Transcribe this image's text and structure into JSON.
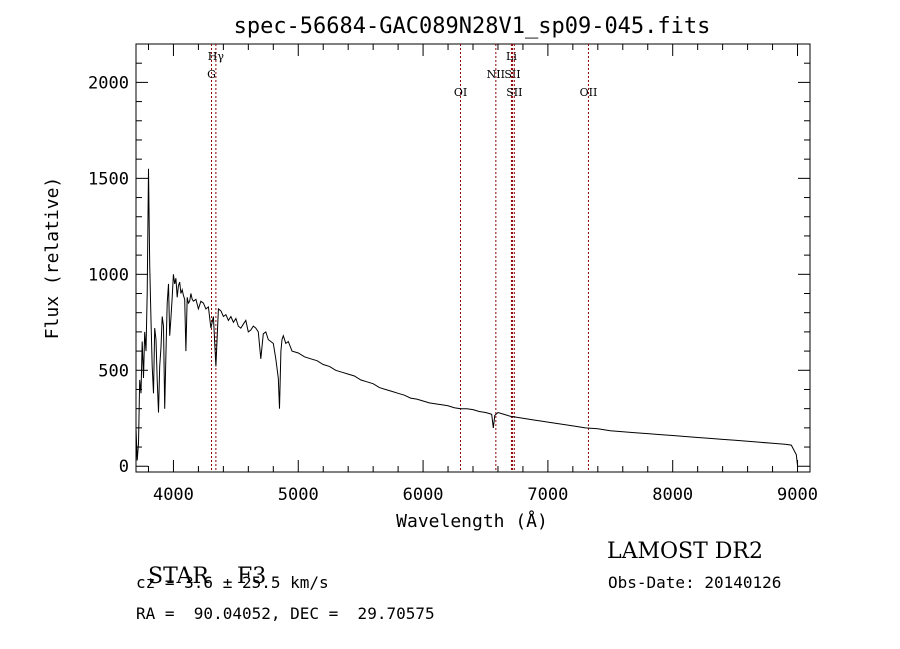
{
  "chart_data": {
    "type": "line",
    "title": "spec-56684-GAC089N28V1_sp09-045.fits",
    "xlabel": "Wavelength (Å)",
    "ylabel": "Flux (relative)",
    "xlim": [
      3700,
      9100
    ],
    "ylim": [
      -30,
      2200
    ],
    "x_ticks": [
      4000,
      5000,
      6000,
      7000,
      8000,
      9000
    ],
    "y_ticks": [
      0,
      500,
      1000,
      1500,
      2000
    ],
    "grid": false,
    "line_color": "#000000",
    "marker_color": "#8b0000",
    "spectral_lines": [
      {
        "name": "Hγ",
        "wavelength": 4340,
        "row": 1
      },
      {
        "name": "G",
        "wavelength": 4305,
        "row": 2
      },
      {
        "name": "OI",
        "wavelength": 6300,
        "row": 3
      },
      {
        "name": "NII",
        "wavelength": 6583,
        "row": 2
      },
      {
        "name": "Li",
        "wavelength": 6708,
        "row": 1
      },
      {
        "name": "SII",
        "wavelength": 6716,
        "row": 2
      },
      {
        "name": "SII",
        "wavelength": 6731,
        "row": 3
      },
      {
        "name": "OII",
        "wavelength": 7325,
        "row": 3
      }
    ],
    "series": [
      {
        "x": [
          3700,
          3710,
          3720,
          3730,
          3740,
          3750,
          3760,
          3770,
          3780,
          3790,
          3800,
          3810,
          3820,
          3830,
          3840,
          3850,
          3860,
          3870,
          3880,
          3890,
          3900,
          3910,
          3920,
          3930,
          3940,
          3950,
          3960,
          3970,
          3980,
          3990,
          4000,
          4010,
          4020,
          4030,
          4040,
          4050,
          4060,
          4070,
          4080,
          4090,
          4100,
          4110,
          4120,
          4130,
          4140,
          4150,
          4160,
          4180,
          4200,
          4220,
          4240,
          4260,
          4280,
          4300,
          4320,
          4340,
          4360,
          4380,
          4400,
          4420,
          4440,
          4460,
          4480,
          4500,
          4520,
          4540,
          4560,
          4580,
          4600,
          4620,
          4640,
          4660,
          4680,
          4700,
          4720,
          4740,
          4760,
          4780,
          4800,
          4820,
          4840,
          4850,
          4861,
          4870,
          4880,
          4900,
          4920,
          4950,
          5000,
          5050,
          5100,
          5150,
          5200,
          5250,
          5300,
          5350,
          5400,
          5450,
          5500,
          5550,
          5600,
          5650,
          5700,
          5750,
          5800,
          5850,
          5900,
          5950,
          6000,
          6050,
          6100,
          6150,
          6200,
          6250,
          6300,
          6350,
          6400,
          6450,
          6500,
          6530,
          6550,
          6563,
          6575,
          6600,
          6650,
          6700,
          6750,
          6800,
          6850,
          6900,
          6950,
          7000,
          7100,
          7200,
          7300,
          7400,
          7500,
          7600,
          7700,
          7800,
          7900,
          8000,
          8100,
          8200,
          8300,
          8400,
          8500,
          8600,
          8700,
          8800,
          8900,
          8950,
          8990,
          9000
        ],
        "y": [
          200,
          30,
          120,
          450,
          380,
          650,
          460,
          700,
          600,
          900,
          1550,
          1050,
          760,
          520,
          380,
          720,
          660,
          450,
          280,
          520,
          620,
          780,
          730,
          300,
          600,
          850,
          950,
          680,
          770,
          880,
          1000,
          950,
          980,
          880,
          940,
          960,
          900,
          920,
          890,
          870,
          600,
          880,
          850,
          860,
          900,
          870,
          860,
          870,
          820,
          860,
          850,
          820,
          830,
          720,
          780,
          520,
          820,
          810,
          780,
          790,
          760,
          780,
          750,
          770,
          730,
          720,
          740,
          760,
          700,
          710,
          730,
          720,
          700,
          560,
          690,
          700,
          660,
          650,
          640,
          560,
          460,
          300,
          600,
          660,
          680,
          640,
          650,
          600,
          590,
          570,
          560,
          550,
          530,
          520,
          500,
          490,
          480,
          470,
          450,
          440,
          430,
          410,
          400,
          390,
          380,
          370,
          355,
          350,
          340,
          330,
          325,
          320,
          315,
          305,
          300,
          300,
          295,
          285,
          280,
          275,
          270,
          200,
          265,
          280,
          270,
          260,
          255,
          250,
          245,
          240,
          235,
          230,
          220,
          210,
          200,
          195,
          185,
          180,
          175,
          170,
          165,
          160,
          155,
          150,
          145,
          140,
          135,
          130,
          125,
          120,
          115,
          110,
          60,
          5
        ]
      }
    ]
  },
  "info": {
    "object_type": "STAR",
    "subclass": "F3",
    "redshift_text": "cz = 3.6 ± 25.5 km/s",
    "coords_text": "RA =  90.04052, DEC =  29.70575",
    "survey": "LAMOST DR2",
    "obs_date": "Obs-Date: 20140126"
  }
}
